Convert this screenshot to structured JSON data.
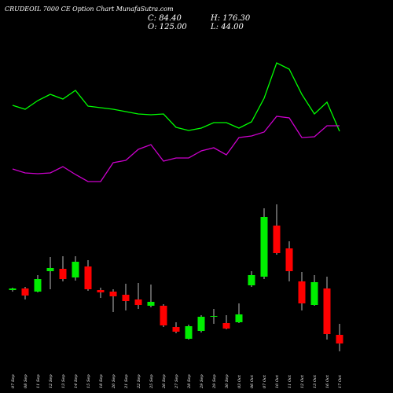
{
  "chart_data": {
    "type": "candlestick",
    "title": "CRUDEOIL 7000  CE Option  Chart MunafaSutra.com",
    "stats": [
      "C: 84.40",
      "H: 176.30",
      "O: 125.00",
      "L: 44.00"
    ],
    "categories": [
      "07 Sep",
      "08 Sep",
      "11 Sep",
      "12 Sep",
      "13 Sep",
      "14 Sep",
      "15 Sep",
      "18 Sep",
      "20 Sep",
      "21 Sep",
      "22 Sep",
      "25 Sep",
      "26 Sep",
      "27 Sep",
      "28 Sep",
      "29 Sep",
      "29 Sep",
      "30 Sep",
      "03 Oct",
      "06 Oct",
      "07 Oct",
      "10 Oct",
      "11 Oct",
      "12 Oct",
      "13 Oct",
      "16 Oct",
      "17 Oct"
    ],
    "open": [
      81,
      83,
      79,
      105,
      108,
      97,
      111,
      81,
      79,
      75,
      69,
      61,
      61,
      34,
      19,
      29,
      47,
      39,
      40,
      87,
      98,
      163,
      134,
      92,
      62,
      83,
      24
    ],
    "close": [
      83,
      74,
      95,
      109,
      95,
      117,
      82,
      78,
      73,
      67,
      62,
      66,
      36,
      28,
      35,
      47,
      48,
      32,
      50,
      100,
      174,
      128,
      105,
      64,
      91,
      25,
      13
    ],
    "high": [
      84,
      85,
      100,
      123,
      124,
      124,
      119,
      84,
      82,
      89,
      90,
      88,
      63,
      40,
      37,
      49,
      57,
      49,
      64,
      105,
      185,
      190,
      143,
      104,
      100,
      98,
      38
    ],
    "low": [
      79,
      69,
      78,
      82,
      92,
      93,
      80,
      71,
      53,
      55,
      57,
      59,
      34,
      26,
      18,
      27,
      38,
      31,
      39,
      85,
      95,
      126,
      92,
      55,
      61,
      18,
      3
    ],
    "up_color": "#00ee00",
    "down_color": "#ff0000",
    "ylim": [
      0,
      200
    ],
    "y2lim": [
      0,
      200
    ],
    "series": [
      {
        "axis": "y2",
        "color": "#00ff00",
        "values": [
          116,
          111,
          122,
          130,
          124,
          135,
          115,
          113,
          111,
          108,
          105,
          104,
          105,
          88,
          84,
          87,
          94,
          94,
          87,
          95,
          125,
          170,
          162,
          130,
          105,
          120,
          83
        ]
      },
      {
        "axis": "y2",
        "color": "#cc00cc",
        "values": [
          35,
          30,
          29,
          30,
          38,
          28,
          19,
          19,
          43,
          46,
          60,
          66,
          45,
          49,
          49,
          58,
          62,
          53,
          75,
          77,
          82,
          102,
          100,
          75,
          76,
          90,
          90
        ]
      }
    ]
  }
}
